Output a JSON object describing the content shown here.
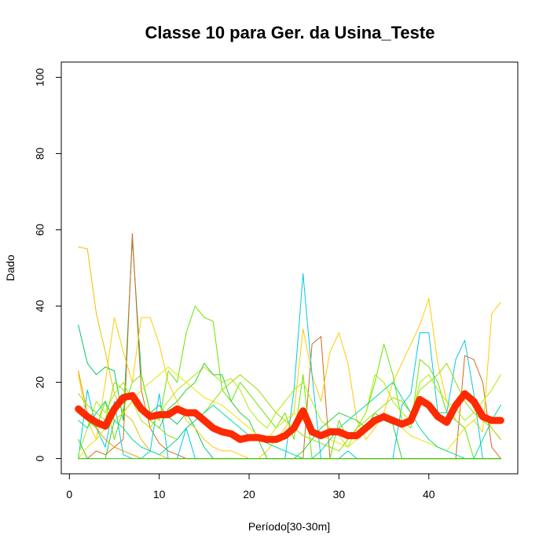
{
  "chart_data": {
    "type": "line",
    "title": "Classe  10 para Ger. da Usina_Teste",
    "xlabel": "Período[30-30m]",
    "ylabel": "Dado",
    "xlim": [
      -0.9,
      49.9
    ],
    "ylim": [
      -4,
      104
    ],
    "xticks": [
      0,
      10,
      20,
      30,
      40
    ],
    "yticks": [
      0,
      20,
      40,
      60,
      80,
      100
    ],
    "grid": false,
    "legend": "none",
    "x": [
      1,
      2,
      3,
      4,
      5,
      6,
      7,
      8,
      9,
      10,
      11,
      12,
      13,
      14,
      15,
      16,
      17,
      18,
      19,
      20,
      21,
      22,
      23,
      24,
      25,
      26,
      27,
      28,
      29,
      30,
      31,
      32,
      33,
      34,
      35,
      36,
      37,
      38,
      39,
      40,
      41,
      42,
      43,
      44,
      45,
      46,
      47,
      48
    ],
    "series": [
      {
        "color": "#e6c300",
        "values": [
          55.5,
          55,
          38,
          28,
          17,
          12,
          10,
          5,
          2,
          1,
          0,
          0,
          0,
          0,
          0,
          0,
          0,
          0,
          0,
          0,
          0,
          0,
          0,
          0,
          0,
          0,
          0,
          0,
          0,
          0,
          0,
          0,
          0,
          0,
          0,
          0,
          0,
          0,
          0,
          0,
          0,
          0,
          0,
          0,
          0,
          0,
          0,
          0
        ]
      },
      {
        "color": "#00c864",
        "values": [
          35,
          25,
          22,
          24,
          23,
          10,
          57.5,
          22,
          12,
          14,
          11,
          9,
          12,
          8,
          3,
          0,
          0,
          0,
          0,
          0,
          0,
          0,
          0,
          0,
          0,
          0,
          0,
          0,
          0,
          0,
          0,
          0,
          0,
          0,
          0,
          0,
          0,
          0,
          0,
          0,
          0,
          0,
          0,
          0,
          0,
          0,
          0,
          0
        ]
      },
      {
        "color": "#d2691e",
        "values": [
          0,
          0,
          2,
          1,
          3,
          5,
          59,
          18,
          8,
          4,
          2,
          1,
          0,
          0,
          0,
          0,
          0,
          0,
          0,
          0,
          0,
          0,
          0,
          0,
          0,
          0,
          30,
          32,
          0,
          0,
          0,
          0,
          0,
          0,
          0,
          0,
          0,
          0,
          0,
          0,
          0,
          0,
          0,
          27,
          26,
          20,
          3,
          0
        ]
      },
      {
        "color": "#ffcc00",
        "values": [
          22,
          10,
          5,
          20,
          37,
          28,
          20,
          37,
          37,
          30,
          20,
          15,
          10,
          8,
          5,
          3,
          2,
          2,
          1,
          0,
          0,
          2,
          5,
          8,
          12,
          34,
          22,
          15,
          28,
          33,
          25,
          10,
          5,
          8,
          12,
          20,
          25,
          30,
          35,
          42,
          25,
          15,
          10,
          8,
          10,
          7,
          38,
          41
        ]
      },
      {
        "color": "#00c8e6",
        "values": [
          0,
          18,
          8,
          3,
          15,
          1,
          0,
          0,
          2,
          17,
          0,
          0,
          8,
          0,
          0,
          0,
          0,
          0,
          0,
          0,
          0,
          0,
          0,
          0,
          18,
          48.5,
          22,
          0,
          0,
          0,
          2,
          0,
          0,
          0,
          0,
          0,
          14,
          17,
          33,
          33,
          12,
          12,
          26,
          31,
          17,
          0,
          0,
          0
        ]
      },
      {
        "color": "#66e600",
        "values": [
          12,
          10,
          8,
          15,
          5,
          13,
          20,
          22,
          12,
          10,
          23,
          20,
          33,
          40,
          37,
          36,
          18,
          15,
          20,
          17,
          14,
          11,
          8,
          12,
          5,
          22,
          0,
          0,
          0,
          10,
          5,
          8,
          12,
          20,
          30,
          22,
          10,
          8,
          26,
          24,
          20,
          12,
          10,
          8,
          0,
          0,
          0,
          0
        ]
      },
      {
        "color": "#aaee00",
        "values": [
          1,
          8,
          15,
          12,
          17,
          20,
          15,
          10,
          8,
          12,
          15,
          18,
          20,
          22,
          24,
          22,
          20,
          21,
          18,
          13,
          10,
          8,
          12,
          15,
          18,
          20,
          15,
          10,
          8,
          6,
          3,
          8,
          12,
          22,
          20,
          15,
          12,
          10,
          20,
          22,
          18,
          15,
          13,
          10,
          12,
          15,
          18,
          22
        ]
      },
      {
        "color": "#33cc33",
        "values": [
          5,
          0,
          0,
          0,
          10,
          12,
          15,
          12,
          10,
          8,
          13,
          15,
          18,
          20,
          25,
          22,
          22,
          15,
          12,
          10,
          5,
          0,
          0,
          0,
          0,
          2,
          5,
          8,
          10,
          12,
          11,
          10,
          8,
          12,
          10,
          9,
          0,
          0,
          0,
          0,
          0,
          0,
          0,
          0,
          0,
          0,
          0,
          0
        ]
      },
      {
        "color": "#e6a000",
        "values": [
          23,
          12,
          8,
          5,
          3,
          2,
          1,
          0,
          0,
          0,
          0,
          0,
          0,
          0,
          0,
          0,
          0,
          0,
          0,
          0,
          0,
          0,
          0,
          0,
          0,
          0,
          0,
          0,
          0,
          0,
          0,
          0,
          0,
          0,
          0,
          0,
          0,
          0,
          0,
          0,
          0,
          0,
          0,
          0,
          0,
          0,
          0,
          0
        ]
      },
      {
        "color": "#e6e600",
        "values": [
          0,
          3,
          5,
          8,
          10,
          12,
          15,
          18,
          20,
          22,
          24,
          22,
          20,
          18,
          16,
          15,
          14,
          12,
          10,
          8,
          6,
          5,
          8,
          10,
          12,
          10,
          8,
          6,
          5,
          4,
          3,
          5,
          8,
          10,
          12,
          10,
          8,
          6,
          5,
          4,
          3,
          2,
          5,
          8,
          10,
          12,
          8,
          5
        ]
      },
      {
        "color": "#99dd00",
        "values": [
          17,
          14,
          12,
          10,
          20,
          18,
          15,
          12,
          10,
          8,
          6,
          5,
          8,
          10,
          12,
          15,
          18,
          20,
          22,
          20,
          18,
          15,
          12,
          10,
          8,
          6,
          5,
          4,
          3,
          2,
          5,
          8,
          10,
          12,
          14,
          16,
          15,
          12,
          18,
          20,
          22,
          25,
          20,
          15,
          12,
          10,
          8,
          5
        ]
      },
      {
        "color": "#00dd99",
        "values": [
          10,
          8,
          12,
          15,
          10,
          8,
          5,
          3,
          2,
          1,
          3,
          5,
          8,
          10,
          12,
          14,
          12,
          10,
          8,
          6,
          5,
          4,
          3,
          2,
          1,
          0,
          0,
          2,
          5,
          8,
          10,
          12,
          14,
          16,
          18,
          20,
          16,
          12,
          8,
          5,
          3,
          2,
          1,
          0,
          0,
          5,
          10,
          14
        ]
      },
      {
        "color": "#33cc00",
        "values": [
          0,
          0,
          0,
          0,
          0,
          0,
          0,
          0,
          0,
          0,
          0,
          0,
          0,
          0,
          0,
          0,
          0,
          0,
          0,
          0,
          0,
          0,
          0,
          0,
          0,
          0,
          0,
          0,
          0,
          0,
          0,
          0,
          0,
          0,
          0,
          0,
          0,
          0,
          0,
          0,
          0,
          0,
          0,
          0,
          0,
          0,
          0,
          0
        ]
      },
      {
        "color": "#ff2a00",
        "highlight": true,
        "values": [
          13,
          11,
          9.5,
          8.5,
          13,
          16,
          16.5,
          13,
          11,
          11.5,
          11.5,
          13,
          12,
          12,
          10,
          8,
          7,
          6.5,
          5,
          5.5,
          5.5,
          5,
          5,
          6,
          8,
          12.5,
          7,
          6,
          7,
          7,
          6,
          6,
          8,
          10,
          11,
          10,
          9,
          10,
          15.5,
          14,
          11,
          9.5,
          14,
          17,
          15,
          11,
          10,
          10
        ]
      }
    ]
  }
}
